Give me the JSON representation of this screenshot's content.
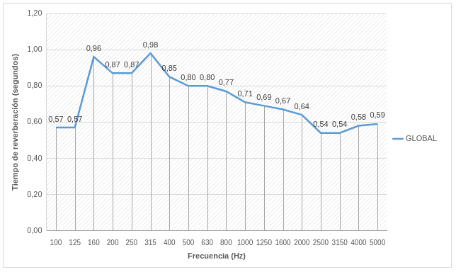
{
  "chart_data": {
    "type": "line",
    "x_label": "Frecuencia (Hz)",
    "y_label": "Tiempo de reverberación (segundos)",
    "categories": [
      "100",
      "125",
      "160",
      "200",
      "250",
      "315",
      "400",
      "500",
      "630",
      "800",
      "1000",
      "1250",
      "1600",
      "2000",
      "2500",
      "3150",
      "4000",
      "5000"
    ],
    "series": [
      {
        "name": "GLOBAL",
        "color": "#5b9bd5",
        "values": [
          0.57,
          0.57,
          0.96,
          0.87,
          0.87,
          0.98,
          0.85,
          0.8,
          0.8,
          0.77,
          0.71,
          0.69,
          0.67,
          0.64,
          0.54,
          0.54,
          0.58,
          0.59
        ],
        "value_labels": [
          "0,57",
          "0,57",
          "0,96",
          "0,87",
          "0,87",
          "0,98",
          "0,85",
          "0,80",
          "0,80",
          "0,77",
          "0,71",
          "0,69",
          "0,67",
          "0,64",
          "0,54",
          "0,54",
          "0,58",
          "0,59"
        ]
      }
    ],
    "ylim": [
      0,
      1.2
    ],
    "yticks": [
      {
        "value": 0,
        "label": "0,00"
      },
      {
        "value": 0.2,
        "label": "0,20"
      },
      {
        "value": 0.4,
        "label": "0,40"
      },
      {
        "value": 0.6,
        "label": "0,60"
      },
      {
        "value": 0.8,
        "label": "0,80"
      },
      {
        "value": 1.0,
        "label": "1,00"
      },
      {
        "value": 1.2,
        "label": "1,20"
      }
    ],
    "grid": true,
    "legend": "right",
    "data_labels": true
  }
}
